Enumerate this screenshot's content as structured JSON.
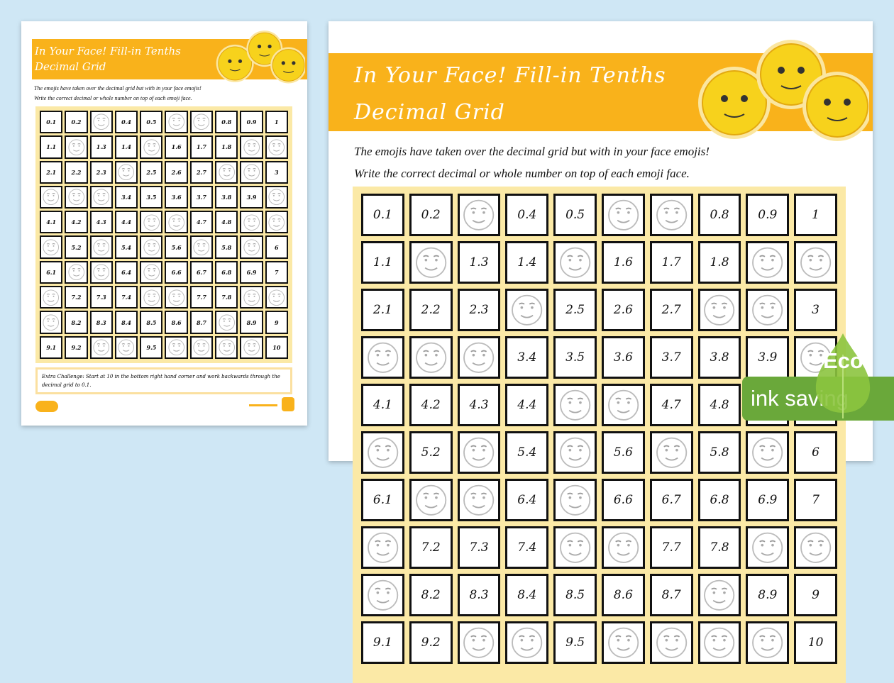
{
  "title_line1": "In Your Face! Fill-in Tenths",
  "title_line2": "Decimal Grid",
  "instructions_line1": "The emojis have taken over the decimal grid but with in your face emojis!",
  "instructions_line2": "Write the correct decimal or whole number on top of each emoji face.",
  "extra_challenge": "Extra Challenge: Start at 10 in the bottom right hand corner and work backwards through the decimal grid to 0.1.",
  "badge": {
    "text": "ink saving",
    "label": "Eco",
    "color": "#6aa83a"
  },
  "colors": {
    "header": "#f9b21b",
    "grid_bg": "#fbe9a6",
    "background": "#cfe7f5"
  },
  "grid": [
    "0.1",
    "0.2",
    "",
    "0.4",
    "0.5",
    "",
    "",
    "0.8",
    "0.9",
    "1",
    "1.1",
    "",
    "1.3",
    "1.4",
    "",
    "1.6",
    "1.7",
    "1.8",
    "",
    "",
    "2.1",
    "2.2",
    "2.3",
    "",
    "2.5",
    "2.6",
    "2.7",
    "",
    "",
    "3",
    "",
    "",
    "",
    "3.4",
    "3.5",
    "3.6",
    "3.7",
    "3.8",
    "3.9",
    "",
    "4.1",
    "4.2",
    "4.3",
    "4.4",
    "",
    "",
    "4.7",
    "4.8",
    "",
    "",
    "",
    "5.2",
    "",
    "5.4",
    "",
    "5.6",
    "",
    "5.8",
    "",
    "6",
    "6.1",
    "",
    "",
    "6.4",
    "",
    "6.6",
    "6.7",
    "6.8",
    "6.9",
    "7",
    "",
    "7.2",
    "7.3",
    "7.4",
    "",
    "",
    "7.7",
    "7.8",
    "",
    "",
    "",
    "8.2",
    "8.3",
    "8.4",
    "8.5",
    "8.6",
    "8.7",
    "",
    "8.9",
    "9",
    "9.1",
    "9.2",
    "",
    "",
    "9.5",
    "",
    "",
    "",
    "",
    "10"
  ]
}
